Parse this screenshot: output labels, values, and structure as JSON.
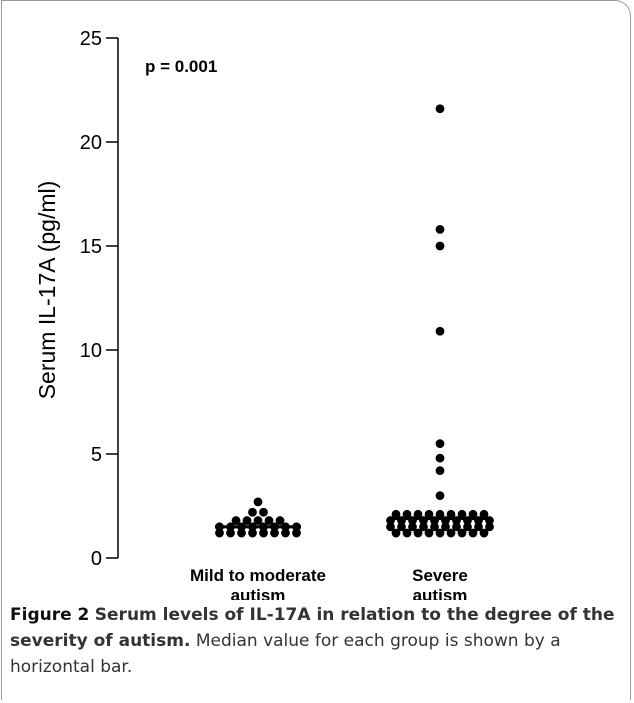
{
  "chart_data": {
    "type": "scatter",
    "ylabel": "Serum IL-17A (pg/ml)",
    "ylim": [
      0,
      25
    ],
    "yticks": [
      0,
      5,
      10,
      15,
      20,
      25
    ],
    "annotation": "p = 0.001",
    "categories": [
      "Mild to moderate\nautism",
      "Severe\nautism"
    ],
    "category_labels": [
      [
        "Mild to moderate",
        "autism"
      ],
      [
        "Severe",
        "autism"
      ]
    ],
    "groups": [
      {
        "median": 1.5,
        "rows": [
          {
            "y": 1.2,
            "count": 8
          },
          {
            "y": 1.5,
            "count": 8
          },
          {
            "y": 1.8,
            "count": 5
          },
          {
            "y": 2.2,
            "count": 2
          },
          {
            "y": 2.7,
            "count": 1
          }
        ]
      },
      {
        "median": 1.9,
        "rows": [
          {
            "y": 1.2,
            "count": 9
          },
          {
            "y": 1.5,
            "count": 10
          },
          {
            "y": 1.8,
            "count": 10
          },
          {
            "y": 2.1,
            "count": 9
          },
          {
            "y": 3.0,
            "count": 1
          },
          {
            "y": 4.2,
            "count": 1
          },
          {
            "y": 4.8,
            "count": 1
          },
          {
            "y": 5.5,
            "count": 1
          },
          {
            "y": 10.9,
            "count": 1
          },
          {
            "y": 15.0,
            "count": 1
          },
          {
            "y": 15.8,
            "count": 1
          },
          {
            "y": 21.6,
            "count": 1
          }
        ]
      }
    ]
  },
  "caption": {
    "label": "Figure 2",
    "title": "Serum levels of IL-17A in relation to the degree of the severity of autism.",
    "text": "Median value for each group is shown by a horizontal bar."
  }
}
